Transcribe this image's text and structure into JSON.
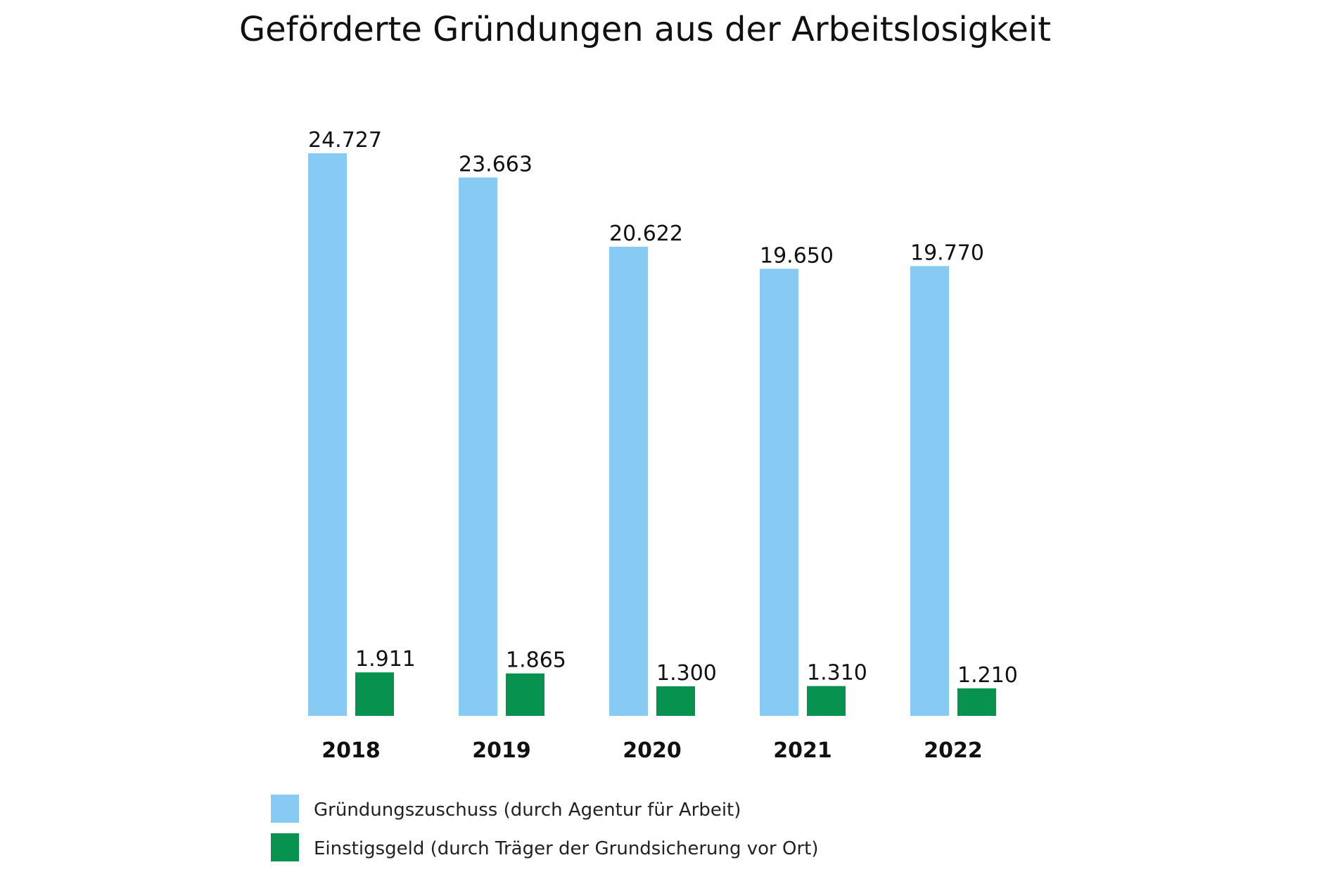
{
  "chart_data": {
    "type": "bar",
    "title": "Geförderte Gründungen aus der Arbeitslosigkeit",
    "xlabel": "",
    "ylabel": "",
    "ylim": [
      0,
      24727
    ],
    "grid": false,
    "legend_position": "bottom-left",
    "categories": [
      "2018",
      "2019",
      "2020",
      "2021",
      "2022"
    ],
    "series": [
      {
        "name": "Gründungszuschuss (durch Agentur für Arbeit)",
        "color": "#87CBF5",
        "values": [
          24727,
          23663,
          20622,
          19650,
          19770
        ],
        "labels": [
          "24.727",
          "23.663",
          "20.622",
          "19.650",
          "19.770"
        ]
      },
      {
        "name": "Einstigsgeld (durch Träger der Grundsicherung vor Ort)",
        "color": "#07934F",
        "values": [
          1911,
          1865,
          1300,
          1310,
          1210
        ],
        "labels": [
          "1.911",
          "1.865",
          "1.300",
          "1.310",
          "1.210"
        ]
      }
    ]
  }
}
